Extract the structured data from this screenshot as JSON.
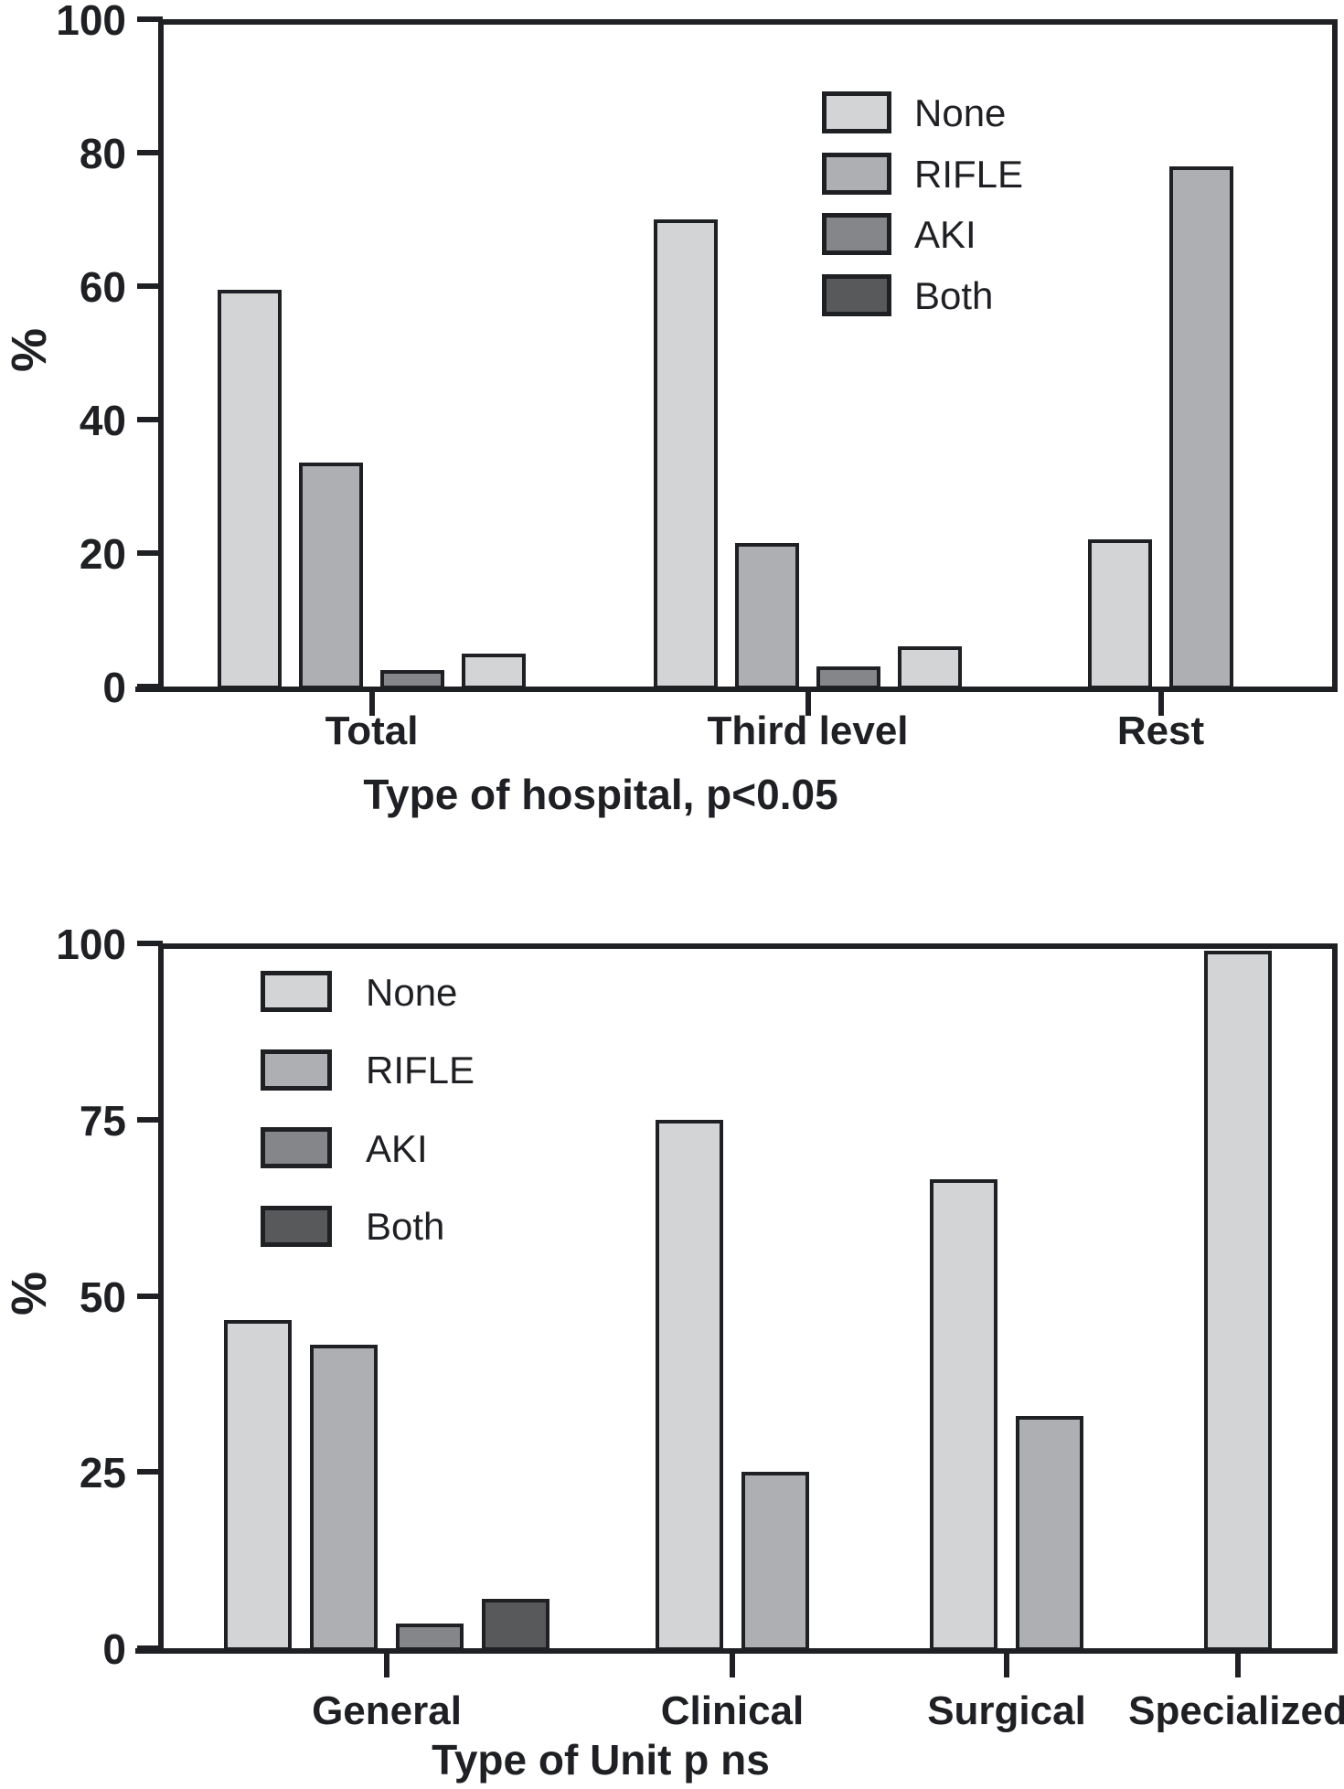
{
  "figure": {
    "background": "#ffffff",
    "ink_color": "#1f2023"
  },
  "colors": {
    "none": "#d3d4d6",
    "rifle": "#aeafb2",
    "aki": "#85868a",
    "both": "#58595b"
  },
  "chart_data": [
    {
      "type": "bar",
      "title": "Type of hospital, p<0.05",
      "ylabel": "%",
      "ylim": [
        0,
        100
      ],
      "yticks": [
        0,
        20,
        40,
        60,
        80,
        100
      ],
      "grid": "off",
      "legend_position": "upper right",
      "categories": [
        "Total",
        "Third level",
        "Rest"
      ],
      "legend": [
        "None",
        "RIFLE",
        "AKI",
        "Both"
      ],
      "series": [
        {
          "name": "None",
          "legend_color": "#d3d4d6",
          "bar_color": "#d3d4d6",
          "values": [
            59.5,
            70,
            22
          ]
        },
        {
          "name": "RIFLE",
          "legend_color": "#aeafb2",
          "bar_color": "#aeafb2",
          "values": [
            33.5,
            21.5,
            78
          ]
        },
        {
          "name": "AKI",
          "legend_color": "#85868a",
          "bar_color": "#85868a",
          "values": [
            2.5,
            3,
            null
          ]
        },
        {
          "name": "Both",
          "legend_color": "#58595b",
          "bar_color": "#d3d4d6",
          "values": [
            5,
            6,
            null
          ]
        }
      ]
    },
    {
      "type": "bar",
      "title": "Type of Unit p ns",
      "ylabel": "%",
      "ylim": [
        0,
        100
      ],
      "yticks": [
        0,
        25,
        50,
        75,
        100
      ],
      "grid": "off",
      "legend_position": "upper left",
      "categories": [
        "General",
        "Clinical",
        "Surgical",
        "Specialized"
      ],
      "legend": [
        "None",
        "RIFLE",
        "AKI",
        "Both"
      ],
      "series": [
        {
          "name": "None",
          "legend_color": "#d3d4d6",
          "bar_color": "#d3d4d6",
          "values": [
            46.5,
            75,
            66.5,
            99
          ]
        },
        {
          "name": "RIFLE",
          "legend_color": "#aeafb2",
          "bar_color": "#aeafb2",
          "values": [
            43,
            25,
            33,
            null
          ]
        },
        {
          "name": "AKI",
          "legend_color": "#85868a",
          "bar_color": "#85868a",
          "values": [
            3.5,
            null,
            null,
            null
          ]
        },
        {
          "name": "Both",
          "legend_color": "#58595b",
          "bar_color": "#58595b",
          "values": [
            7,
            null,
            null,
            null
          ]
        }
      ]
    }
  ]
}
